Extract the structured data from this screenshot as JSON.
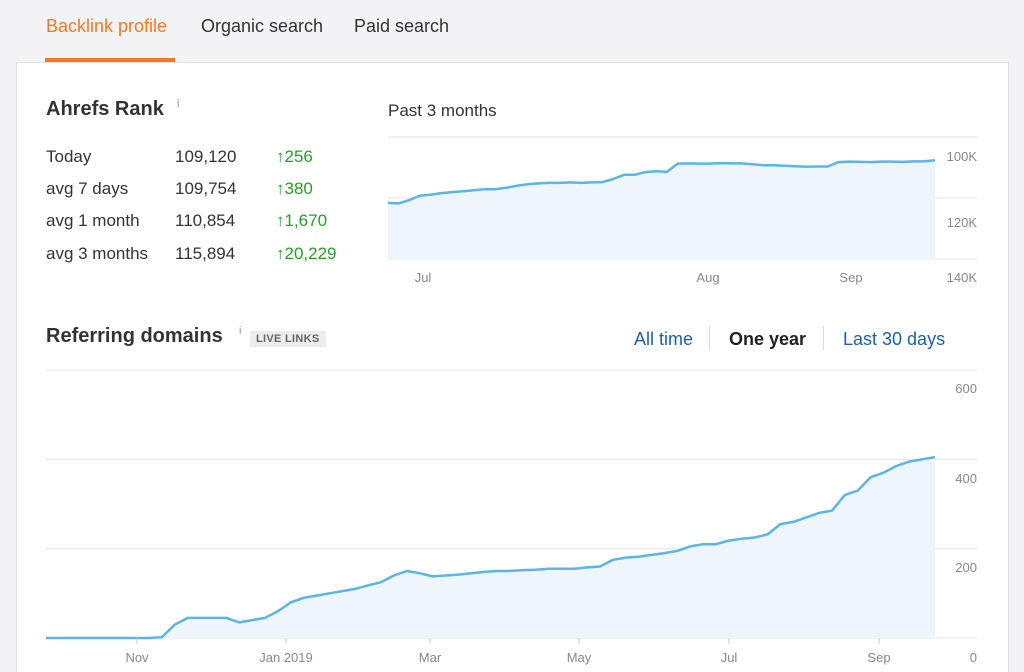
{
  "tabs": [
    {
      "label": "Backlink profile",
      "active": true
    },
    {
      "label": "Organic search",
      "active": false
    },
    {
      "label": "Paid search",
      "active": false
    }
  ],
  "ahrefs_rank": {
    "title": "Ahrefs Rank",
    "info": "i",
    "rows": [
      {
        "label": "Today",
        "value": "109,120",
        "change": "256"
      },
      {
        "label": "avg 7 days",
        "value": "109,754",
        "change": "380"
      },
      {
        "label": "avg 1 month",
        "value": "110,854",
        "change": "1,670"
      },
      {
        "label": "avg 3 months",
        "value": "115,894",
        "change": "20,229"
      }
    ],
    "period": "Past 3 months"
  },
  "referring_domains": {
    "title": "Referring domains",
    "info": "i",
    "badge": "LIVE LINKS",
    "ranges": [
      "All time",
      "One year",
      "Last 30 days"
    ],
    "selected_range": "One year"
  },
  "colors": {
    "accent": "#f37a21",
    "line": "#5bb5e8",
    "fill": "#eef6fb",
    "positive": "#2a9d2a",
    "link": "#1a5fb4"
  },
  "chart_data": [
    {
      "type": "area",
      "title": "Past 3 months",
      "y_inverted": true,
      "ylim": [
        140000,
        90000
      ],
      "y_ticks": [
        "100K",
        "120K",
        "140K"
      ],
      "x_ticks": [
        "Jul",
        "Aug",
        "Sep"
      ],
      "series": [
        {
          "values": [
            117000,
            117200,
            115800,
            114000,
            113600,
            113000,
            112600,
            112200,
            111800,
            111400,
            111400,
            110800,
            110000,
            109400,
            109000,
            108800,
            108800,
            108600,
            108800,
            108600,
            108500,
            107200,
            105500,
            105500,
            104400,
            104000,
            104300,
            100900,
            100800,
            100900,
            100900,
            100700,
            100800,
            100800,
            101200,
            101600,
            101600,
            101800,
            102000,
            102200,
            102100,
            102100,
            100300,
            100100,
            100200,
            100300,
            100100,
            100100,
            100200,
            100000,
            100000,
            99500
          ]
        }
      ]
    },
    {
      "type": "area",
      "title": "Referring domains",
      "ylim": [
        0,
        600
      ],
      "y_ticks": [
        "0",
        "200",
        "400",
        "600"
      ],
      "x_ticks": [
        "Nov",
        "Jan 2019",
        "Mar",
        "May",
        "Jul",
        "Sep"
      ],
      "series": [
        {
          "values": [
            0,
            0,
            0,
            0,
            0,
            0,
            0,
            0,
            0,
            2,
            30,
            45,
            45,
            45,
            45,
            35,
            40,
            45,
            60,
            80,
            90,
            95,
            100,
            105,
            110,
            118,
            125,
            140,
            150,
            145,
            138,
            140,
            142,
            145,
            148,
            150,
            150,
            152,
            153,
            155,
            155,
            155,
            158,
            160,
            175,
            180,
            182,
            186,
            190,
            195,
            205,
            210,
            210,
            218,
            222,
            225,
            232,
            255,
            260,
            270,
            280,
            285,
            320,
            330,
            360,
            370,
            385,
            395,
            400,
            405
          ]
        }
      ]
    }
  ]
}
